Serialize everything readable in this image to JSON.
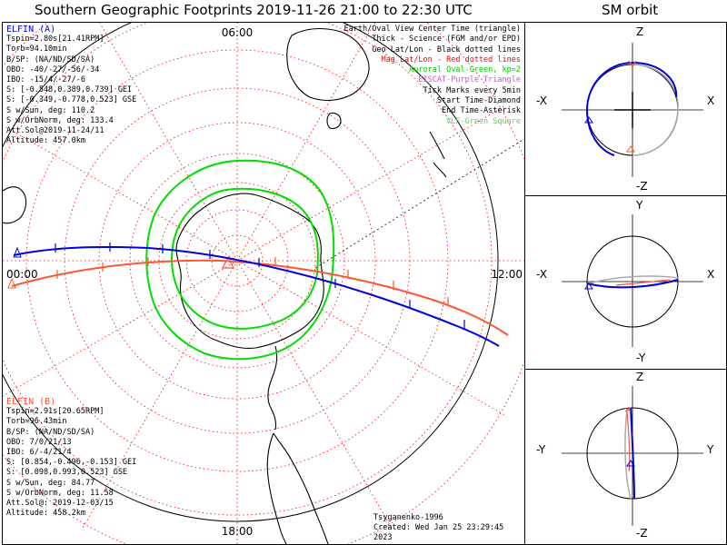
{
  "header": {
    "main_title": "Southern Geographic Footprints 2019-11-26 21:00 to 22:30 UTC",
    "sm_title": "SM orbit"
  },
  "map": {
    "clock_labels": {
      "top": "06:00",
      "left": "00:00",
      "right": "12:00",
      "bottom": "18:00"
    },
    "elfin_a": {
      "name": "ELFIN (A)",
      "lines": [
        "Tspin=2.80s[21.41RPM]",
        "Torb=94.10min",
        "B/SP: (NA/ND/SD/SA)",
        "OBO: -40/-27/-56/-34",
        "IBO: -15/4/-27/-6",
        "S: [-0.548,0.389,0.739] GEI",
        "S: [-0.349,-0.778,0.523] GSE",
        "S w/Sun, deg: 110.2",
        "S w/OrbNorm, deg: 133.4",
        "Att.Sol@2019-11-24/11",
        "Altitude: 457.0km"
      ]
    },
    "elfin_b": {
      "name": "ELFIN (B)",
      "lines": [
        "Tspin=2.91s[20.65RPM]",
        "Torb=96.43min",
        "B/SP: (NA/ND/SD/SA)",
        "OBO: 7/0/21/13",
        "IBO: 6/-4/21/4",
        "S: [0.854,-0.496,-0.153] GEI",
        "S: [0.098,0.993,0.523] GSE",
        "S w/Sun, deg: 84.77",
        "S w/OrbNorm, deg: 11.58",
        "Att.Sol@: 2019-12-03/15",
        "Altitude: 458.2km"
      ]
    },
    "legend": [
      {
        "text": "Earth/Oval View Center Time (triangle)",
        "color": "#000000"
      },
      {
        "text": "Thick - Science (FGM and/or EPD)",
        "color": "#000000"
      },
      {
        "text": "Geo Lat/Lon - Black dotted lines",
        "color": "#000000"
      },
      {
        "text": "Mag Lat/Lon - Red dotted lines",
        "color": "#ff0000"
      },
      {
        "text": "Auroral Oval-Green, kp=2",
        "color": "#00cc00"
      },
      {
        "text": "EISCAT-Purple Triangle",
        "color": "#cc55cc"
      },
      {
        "text": "Tick Marks every 5min",
        "color": "#000000"
      },
      {
        "text": "Start Time-Diamond",
        "color": "#000000"
      },
      {
        "text": "End Time-Asterisk",
        "color": "#000000"
      },
      {
        "text": "VLF-Green Square",
        "color": "#66cc66"
      }
    ],
    "footer_model": "Tsyganenko-1996",
    "footer_created": "Created: Wed Jan 25 23:29:45 2023",
    "colors": {
      "elfin_a": "#0000dd",
      "elfin_b": "#ff5533",
      "oval": "#00dd00",
      "grid": "#ff0000"
    }
  },
  "sm_panels": [
    {
      "top": "Z",
      "bottom": "-Z",
      "left": "-X",
      "right": "X"
    },
    {
      "top": "Y",
      "bottom": "-Y",
      "left": "-X",
      "right": "X"
    },
    {
      "top": "Z",
      "bottom": "-Z",
      "left": "-Y",
      "right": "Y"
    }
  ]
}
